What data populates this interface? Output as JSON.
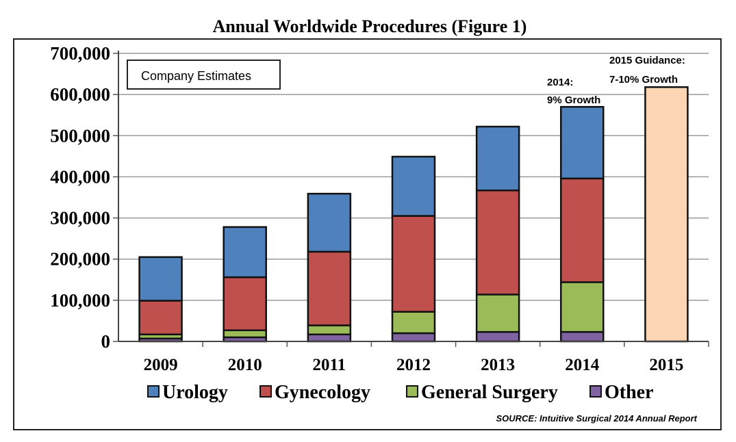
{
  "chart_data": {
    "type": "bar",
    "stacked": true,
    "title": "Annual Worldwide Procedures (Figure 1)",
    "xlabel": "",
    "ylabel": "",
    "ylim": [
      0,
      700000
    ],
    "yticks": [
      0,
      100000,
      200000,
      300000,
      400000,
      500000,
      600000,
      700000
    ],
    "ytick_labels": [
      "0",
      "100,000",
      "200,000",
      "300,000",
      "400,000",
      "500,000",
      "600,000",
      "700,000"
    ],
    "grid": true,
    "categories": [
      "2009",
      "2010",
      "2011",
      "2012",
      "2013",
      "2014",
      "2015"
    ],
    "series": [
      {
        "name": "Other",
        "color": "#8064a2",
        "values": [
          7000,
          10000,
          17000,
          20000,
          23000,
          23000,
          null
        ]
      },
      {
        "name": "General Surgery",
        "color": "#9bbb59",
        "values": [
          10000,
          17000,
          22000,
          52000,
          91000,
          121000,
          null
        ]
      },
      {
        "name": "Gynecology",
        "color": "#c0504d",
        "values": [
          82000,
          129000,
          179000,
          233000,
          253000,
          252000,
          null
        ]
      },
      {
        "name": "Urology",
        "color": "#4f81bd",
        "values": [
          106000,
          122000,
          141000,
          144000,
          155000,
          174000,
          null
        ]
      }
    ],
    "estimate_bar": {
      "category": "2015",
      "value": 618000,
      "color": "#fcd5b5"
    },
    "legend_order": [
      "Urology",
      "Gynecology",
      "General Surgery",
      "Other"
    ],
    "legend_placement": "bottom",
    "annotations": {
      "box": "Company Estimates",
      "a2014_line1": "2014:",
      "a2014_line2": "9% Growth",
      "a2015_line1": "2015 Guidance:",
      "a2015_line2": "7-10% Growth"
    },
    "source": "SOURCE: Intuitive Surgical 2014 Annual Report"
  }
}
